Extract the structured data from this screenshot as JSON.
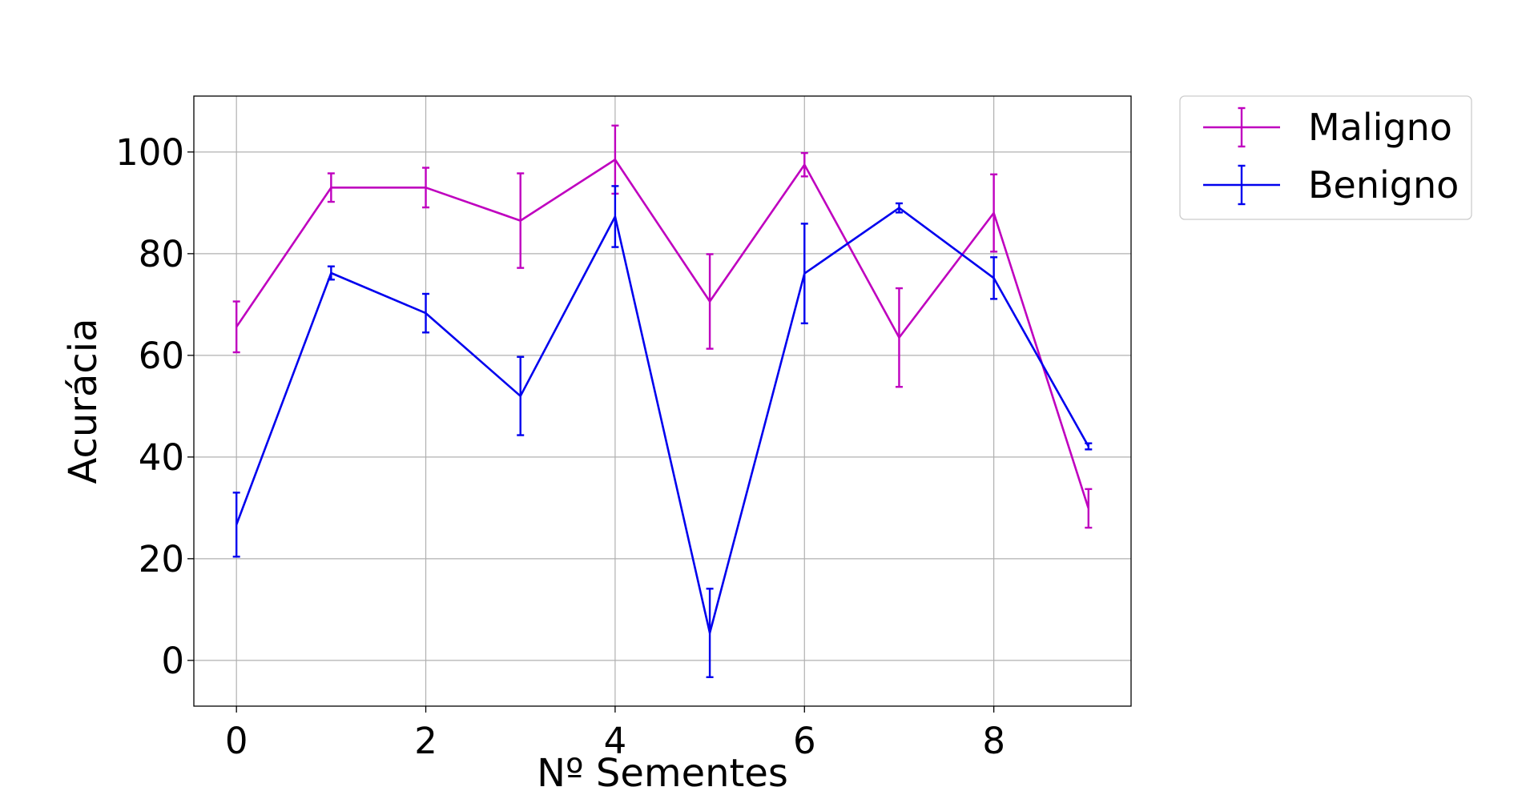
{
  "chart_data": {
    "type": "line",
    "title": "",
    "xlabel": "Nº Sementes",
    "ylabel": "Acurácia",
    "x": [
      0,
      1,
      2,
      3,
      4,
      5,
      6,
      7,
      8,
      9
    ],
    "xlim": [
      -0.45,
      9.45
    ],
    "ylim": [
      -9,
      111
    ],
    "xticks": [
      0,
      2,
      4,
      6,
      8
    ],
    "yticks": [
      0,
      20,
      40,
      60,
      80,
      100
    ],
    "grid": true,
    "legend_position": "outside-top-right",
    "series": [
      {
        "name": "Maligno",
        "color": "#bf00bf",
        "values": [
          65.6,
          93.0,
          93.0,
          86.5,
          98.5,
          70.6,
          97.5,
          63.5,
          88.0,
          29.9
        ],
        "errors": [
          5.0,
          2.8,
          3.9,
          9.3,
          6.7,
          9.3,
          2.3,
          9.7,
          7.6,
          3.8
        ]
      },
      {
        "name": "Benigno",
        "color": "#0000ee",
        "values": [
          26.7,
          76.2,
          68.3,
          52.0,
          87.3,
          5.4,
          76.1,
          89.0,
          75.2,
          42.1
        ],
        "errors": [
          6.3,
          1.3,
          3.8,
          7.7,
          6.0,
          8.7,
          9.8,
          0.9,
          4.1,
          0.6
        ]
      }
    ]
  }
}
